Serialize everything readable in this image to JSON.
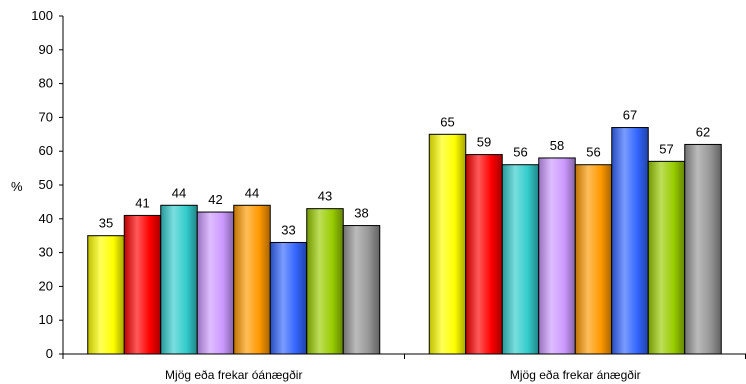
{
  "chart_data": {
    "type": "bar",
    "categories": [
      "Mjög eða frekar óánægðir",
      "Mjög eða frekar ánægðir"
    ],
    "series": [
      {
        "values": [
          35,
          65
        ],
        "color": "#ffff00"
      },
      {
        "values": [
          41,
          59
        ],
        "color": "#ff0000"
      },
      {
        "values": [
          44,
          56
        ],
        "color": "#33cccc"
      },
      {
        "values": [
          42,
          58
        ],
        "color": "#cc99ff"
      },
      {
        "values": [
          44,
          56
        ],
        "color": "#ff9900"
      },
      {
        "values": [
          33,
          67
        ],
        "color": "#3366ff"
      },
      {
        "values": [
          43,
          57
        ],
        "color": "#99cc00"
      },
      {
        "values": [
          38,
          62
        ],
        "color": "#969696"
      }
    ],
    "title": "",
    "xlabel": "",
    "ylabel": "%",
    "ylim": [
      0,
      100
    ],
    "yticks": [
      0,
      10,
      20,
      30,
      40,
      50,
      60,
      70,
      80,
      90,
      100
    ],
    "grid": false,
    "legend": "none"
  }
}
